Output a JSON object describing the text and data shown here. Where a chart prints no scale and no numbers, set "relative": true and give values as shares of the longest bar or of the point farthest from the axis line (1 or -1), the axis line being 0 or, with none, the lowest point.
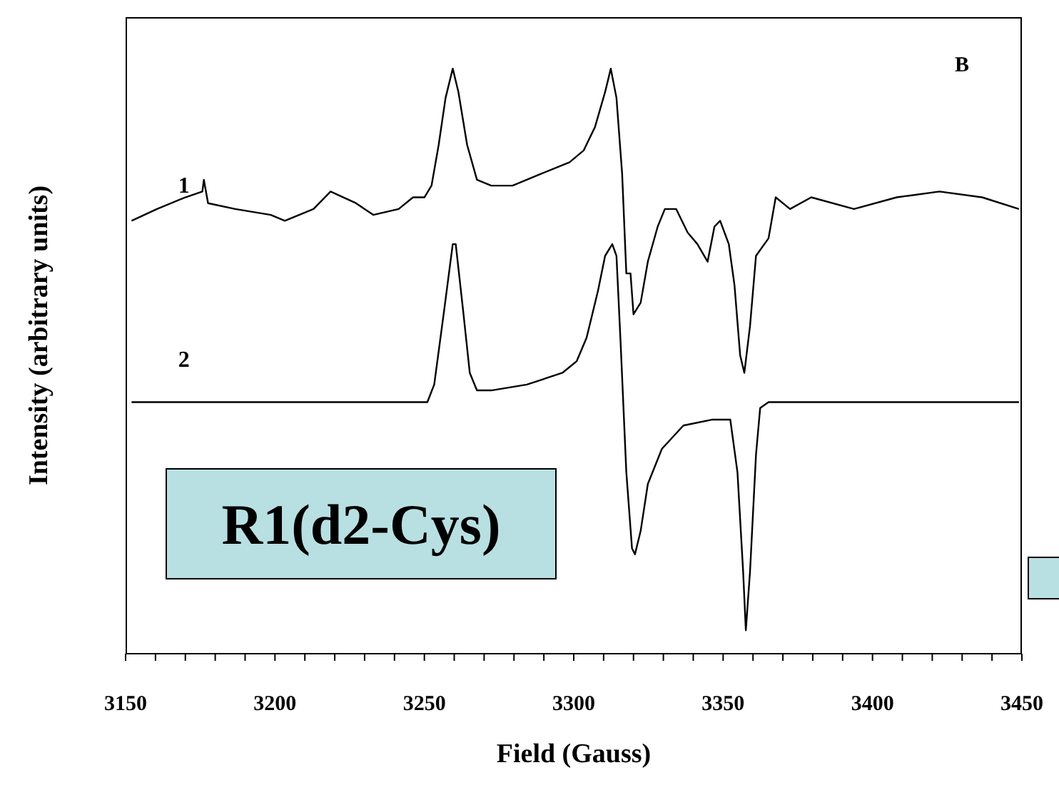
{
  "chart_data": {
    "type": "line",
    "relative": true,
    "xlabel": "Field (Gauss)",
    "ylabel": "Intensity (arbitrary units)",
    "annotations": [
      "B",
      "R1(d2-Cys)"
    ],
    "xlim": [
      3150,
      3450
    ],
    "xticks": [
      3150,
      {
        "value": 3160,
        "label": null
      },
      {
        "value": 3170,
        "label": null
      },
      {
        "value": 3180,
        "label": null
      },
      {
        "value": 3190,
        "label": null
      },
      3200,
      {
        "value": 3210,
        "label": null
      },
      {
        "value": 3220,
        "label": null
      },
      {
        "value": 3230,
        "label": null
      },
      {
        "value": 3240,
        "label": null
      },
      3250,
      {
        "value": 3260,
        "label": null
      },
      {
        "value": 3270,
        "label": null
      },
      {
        "value": 3280,
        "label": null
      },
      {
        "value": 3290,
        "label": null
      },
      3300,
      {
        "value": 3310,
        "label": null
      },
      {
        "value": 3320,
        "label": null
      },
      {
        "value": 3330,
        "label": null
      },
      {
        "value": 3340,
        "label": null
      },
      3350,
      {
        "value": 3360,
        "label": null
      },
      {
        "value": 3370,
        "label": null
      },
      {
        "value": 3380,
        "label": null
      },
      {
        "value": 3390,
        "label": null
      },
      3400,
      {
        "value": 3410,
        "label": null
      },
      {
        "value": 3420,
        "label": null
      },
      {
        "value": 3430,
        "label": null
      },
      {
        "value": 3440,
        "label": null
      },
      3450
    ],
    "series": [
      {
        "name": "1",
        "color": "#000000",
        "x": [
          3152,
          3160.5,
          3170,
          3175.7,
          3176.2,
          3177.6,
          3186.7,
          3198.6,
          3203.3,
          3212.9,
          3218.6,
          3227.1,
          3232.9,
          3241.4,
          3246.2,
          3250,
          3252.4,
          3254.8,
          3257.1,
          3259.5,
          3261.4,
          3264.3,
          3267.6,
          3272.4,
          3279.5,
          3289,
          3298.6,
          3303.3,
          3307.1,
          3310.5,
          3312.4,
          3314.3,
          3316.2,
          3317.6,
          3319,
          3320,
          3322.4,
          3324.8,
          3328.1,
          3330.5,
          3334.3,
          3338.1,
          3341.4,
          3344.8,
          3347.1,
          3349,
          3351.9,
          3353.8,
          3355.7,
          3357.1,
          3359,
          3361,
          3365.2,
          3367.6,
          3372.4,
          3379.5,
          3393.8,
          3408.1,
          3422.4,
          3436.7,
          3449
        ],
        "values": [
          0.74,
          0.76,
          0.78,
          0.79,
          0.81,
          0.77,
          0.76,
          0.75,
          0.74,
          0.76,
          0.79,
          0.77,
          0.75,
          0.76,
          0.78,
          0.78,
          0.8,
          0.87,
          0.95,
          1.0,
          0.96,
          0.87,
          0.81,
          0.8,
          0.8,
          0.82,
          0.84,
          0.86,
          0.9,
          0.96,
          1.0,
          0.95,
          0.82,
          0.65,
          0.65,
          0.58,
          0.6,
          0.67,
          0.73,
          0.76,
          0.76,
          0.72,
          0.7,
          0.67,
          0.73,
          0.74,
          0.7,
          0.63,
          0.51,
          0.48,
          0.56,
          0.68,
          0.71,
          0.78,
          0.76,
          0.78,
          0.76,
          0.78,
          0.79,
          0.78,
          0.76
        ]
      },
      {
        "name": "2",
        "color": "#000000",
        "x": [
          3152,
          3251,
          3253.3,
          3256.7,
          3259.5,
          3260.5,
          3262.9,
          3265.2,
          3267.6,
          3272.4,
          3284.3,
          3296.2,
          3301,
          3304.3,
          3308.1,
          3310.5,
          3312.9,
          3314.3,
          3315.7,
          3317.6,
          3319.5,
          3320.5,
          3322.4,
          3324.8,
          3329.5,
          3336.7,
          3346.2,
          3351,
          3352.4,
          3354.8,
          3356.7,
          3357.6,
          3359,
          3361,
          3362.4,
          3365.2,
          3449
        ],
        "values": [
          0.43,
          0.43,
          0.46,
          0.59,
          0.7,
          0.7,
          0.59,
          0.48,
          0.45,
          0.45,
          0.46,
          0.48,
          0.5,
          0.54,
          0.62,
          0.68,
          0.7,
          0.68,
          0.53,
          0.31,
          0.18,
          0.17,
          0.21,
          0.29,
          0.35,
          0.39,
          0.4,
          0.4,
          0.4,
          0.31,
          0.14,
          0.04,
          0.14,
          0.34,
          0.42,
          0.43,
          0.43
        ]
      }
    ]
  }
}
